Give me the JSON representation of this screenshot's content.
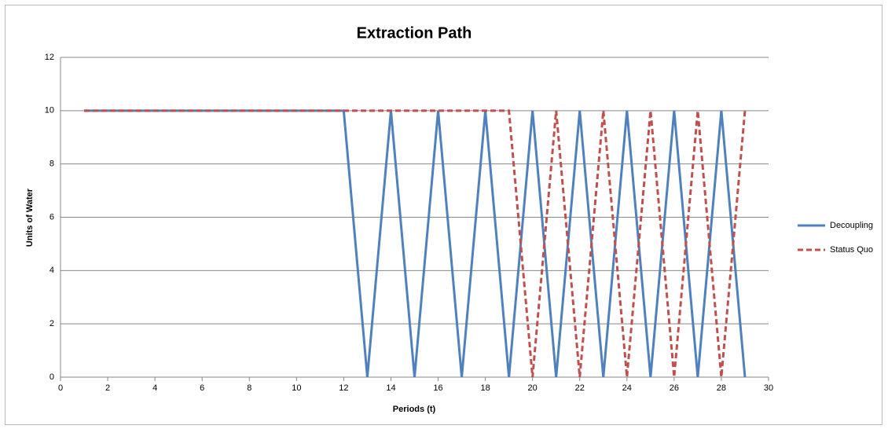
{
  "chart_data": {
    "type": "line",
    "title": "Extraction Path",
    "x_label": "Periods (t)",
    "y_label": "Units of Water",
    "x": [
      1,
      2,
      3,
      4,
      5,
      6,
      7,
      8,
      9,
      10,
      11,
      12,
      13,
      14,
      15,
      16,
      17,
      18,
      19,
      20,
      21,
      22,
      23,
      24,
      25,
      26,
      27,
      28,
      29
    ],
    "series": [
      {
        "name": "Decoupling",
        "color": "#4f81bd",
        "dash": false,
        "values": [
          10,
          10,
          10,
          10,
          10,
          10,
          10,
          10,
          10,
          10,
          10,
          10,
          0,
          10,
          0,
          10,
          0,
          10,
          0,
          10,
          0,
          10,
          0,
          10,
          0,
          10,
          0,
          10,
          0
        ]
      },
      {
        "name": "Status Quo",
        "color": "#c0504d",
        "dash": true,
        "values": [
          10,
          10,
          10,
          10,
          10,
          10,
          10,
          10,
          10,
          10,
          10,
          10,
          10,
          10,
          10,
          10,
          10,
          10,
          10,
          0,
          10,
          0,
          10,
          0,
          10,
          0,
          10,
          0,
          10
        ]
      }
    ],
    "xlim": [
      0,
      30
    ],
    "xticks": [
      0,
      2,
      4,
      6,
      8,
      10,
      12,
      14,
      16,
      18,
      20,
      22,
      24,
      26,
      28,
      30
    ],
    "ylim": [
      0,
      12
    ],
    "yticks": [
      0,
      2,
      4,
      6,
      8,
      10,
      12
    ],
    "grid": true,
    "legend": "right"
  }
}
